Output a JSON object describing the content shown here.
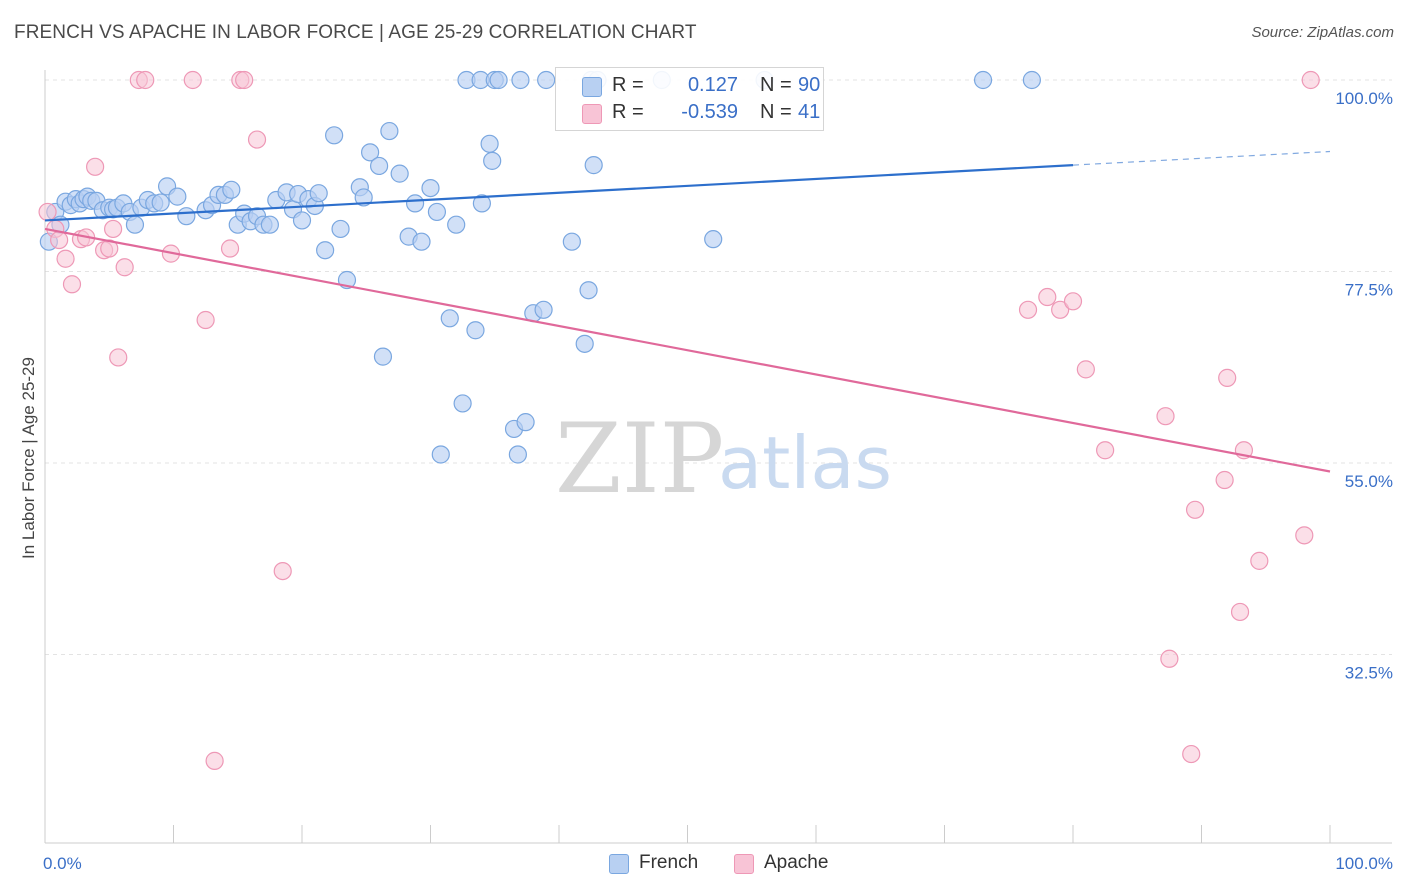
{
  "title": "FRENCH VS APACHE IN LABOR FORCE | AGE 25-29 CORRELATION CHART",
  "source": "Source: ZipAtlas.com",
  "watermark": {
    "zip": "ZIP",
    "atlas": "atlas"
  },
  "legend": {
    "rows": [
      {
        "r_label": "R =",
        "r_value": "0.127",
        "n_label": "N =",
        "n_value": "90"
      },
      {
        "r_label": "R =",
        "r_value": "-0.539",
        "n_label": "N =",
        "n_value": "41"
      }
    ]
  },
  "bottom_legend": [
    "French",
    "Apache"
  ],
  "colors": {
    "french_fill": "#b8d0f2",
    "french_stroke": "#7aa7e0",
    "french_line": "#2d6fcc",
    "apache_fill": "#f8c4d6",
    "apache_stroke": "#ee98b6",
    "apache_line": "#e0699a",
    "grid": "#e3e3e3",
    "axis": "#cccccc",
    "tick_text": "#3a6fc7"
  },
  "chart_data": {
    "type": "scatter",
    "title": "FRENCH VS APACHE IN LABOR FORCE | AGE 25-29 CORRELATION CHART",
    "xlabel": "",
    "ylabel": "In Labor Force | Age 25-29",
    "xlim": [
      0,
      100
    ],
    "ylim": [
      10,
      102
    ],
    "x_tick_labels": [
      "0.0%",
      "100.0%"
    ],
    "y_ticks": [
      {
        "value": 100,
        "label": "100.0%"
      },
      {
        "value": 77.5,
        "label": "77.5%"
      },
      {
        "value": 55,
        "label": "55.0%"
      },
      {
        "value": 32.5,
        "label": "32.5%"
      }
    ],
    "series": [
      {
        "name": "French",
        "trend": {
          "x0": 0,
          "y0": 83.5,
          "x1": 80,
          "y1": 90.0,
          "dash_x_end": 100,
          "dash_y_end": 91.6
        },
        "points": [
          [
            0.3,
            81
          ],
          [
            0.8,
            84.5
          ],
          [
            1.2,
            83
          ],
          [
            1.6,
            85.7
          ],
          [
            2,
            85.3
          ],
          [
            2.4,
            86
          ],
          [
            2.7,
            85.5
          ],
          [
            3,
            86
          ],
          [
            3.3,
            86.3
          ],
          [
            3.6,
            85.8
          ],
          [
            4,
            85.8
          ],
          [
            4.5,
            84.7
          ],
          [
            5,
            85
          ],
          [
            5.3,
            84.8
          ],
          [
            5.6,
            85
          ],
          [
            6.1,
            85.5
          ],
          [
            6.6,
            84.5
          ],
          [
            7,
            83
          ],
          [
            7.5,
            85
          ],
          [
            8,
            85.9
          ],
          [
            8.5,
            85.5
          ],
          [
            9,
            85.6
          ],
          [
            9.5,
            87.5
          ],
          [
            10.3,
            86.3
          ],
          [
            11,
            84
          ],
          [
            12.5,
            84.7
          ],
          [
            13,
            85.3
          ],
          [
            13.5,
            86.5
          ],
          [
            14,
            86.5
          ],
          [
            14.5,
            87.1
          ],
          [
            15,
            83
          ],
          [
            15.5,
            84.3
          ],
          [
            16,
            83.4
          ],
          [
            16.5,
            84
          ],
          [
            17,
            83
          ],
          [
            17.5,
            83
          ],
          [
            18,
            85.9
          ],
          [
            18.8,
            86.8
          ],
          [
            19.3,
            84.8
          ],
          [
            19.7,
            86.6
          ],
          [
            20,
            83.5
          ],
          [
            20.5,
            86
          ],
          [
            21,
            85.2
          ],
          [
            21.3,
            86.7
          ],
          [
            21.8,
            80
          ],
          [
            22.5,
            93.5
          ],
          [
            23,
            82.5
          ],
          [
            23.5,
            76.5
          ],
          [
            24.5,
            87.4
          ],
          [
            24.8,
            86.2
          ],
          [
            25.3,
            91.5
          ],
          [
            26,
            89.9
          ],
          [
            26.3,
            67.5
          ],
          [
            26.8,
            94
          ],
          [
            27.6,
            89
          ],
          [
            28.3,
            81.6
          ],
          [
            28.8,
            85.5
          ],
          [
            29.3,
            81
          ],
          [
            30,
            87.3
          ],
          [
            30.5,
            84.5
          ],
          [
            30.8,
            56
          ],
          [
            31.5,
            72
          ],
          [
            32,
            83
          ],
          [
            32.5,
            62
          ],
          [
            32.8,
            100
          ],
          [
            33.5,
            70.6
          ],
          [
            33.9,
            100
          ],
          [
            34,
            85.5
          ],
          [
            34.6,
            92.5
          ],
          [
            34.8,
            90.5
          ],
          [
            35,
            100
          ],
          [
            35.3,
            100
          ],
          [
            36.5,
            59
          ],
          [
            36.8,
            56
          ],
          [
            37,
            100
          ],
          [
            37.4,
            59.8
          ],
          [
            38,
            72.6
          ],
          [
            38.8,
            73
          ],
          [
            39,
            100
          ],
          [
            41,
            81
          ],
          [
            42,
            69
          ],
          [
            42.3,
            75.3
          ],
          [
            42.5,
            100
          ],
          [
            42.7,
            90
          ],
          [
            43,
            100
          ],
          [
            48,
            100
          ],
          [
            52,
            81.3
          ],
          [
            56,
            100
          ],
          [
            73,
            100
          ],
          [
            76.8,
            100
          ]
        ]
      },
      {
        "name": "Apache",
        "trend": {
          "x0": 0,
          "y0": 82.5,
          "x1": 100,
          "y1": 54.0
        },
        "points": [
          [
            0.2,
            84.5
          ],
          [
            0.8,
            82.5
          ],
          [
            1.1,
            81.2
          ],
          [
            1.6,
            79
          ],
          [
            2.1,
            76
          ],
          [
            2.8,
            81.3
          ],
          [
            3.2,
            81.5
          ],
          [
            3.9,
            89.8
          ],
          [
            4.6,
            80
          ],
          [
            5,
            80.2
          ],
          [
            5.3,
            82.5
          ],
          [
            5.7,
            67.4
          ],
          [
            6.2,
            78
          ],
          [
            7.3,
            100
          ],
          [
            7.8,
            100
          ],
          [
            9.8,
            79.6
          ],
          [
            11.5,
            100
          ],
          [
            12.5,
            71.8
          ],
          [
            13.2,
            20
          ],
          [
            14.4,
            80.2
          ],
          [
            15.2,
            100
          ],
          [
            15.5,
            100
          ],
          [
            16.5,
            93
          ],
          [
            18.5,
            42.3
          ],
          [
            76.5,
            73
          ],
          [
            78,
            74.5
          ],
          [
            79,
            73
          ],
          [
            80,
            74
          ],
          [
            81,
            66
          ],
          [
            82.5,
            56.5
          ],
          [
            87.2,
            60.5
          ],
          [
            87.5,
            32
          ],
          [
            89.2,
            20.8
          ],
          [
            89.5,
            49.5
          ],
          [
            91.8,
            53
          ],
          [
            92,
            65
          ],
          [
            93,
            37.5
          ],
          [
            93.3,
            56.5
          ],
          [
            94.5,
            43.5
          ],
          [
            98.5,
            100
          ],
          [
            98,
            46.5
          ]
        ]
      }
    ]
  }
}
